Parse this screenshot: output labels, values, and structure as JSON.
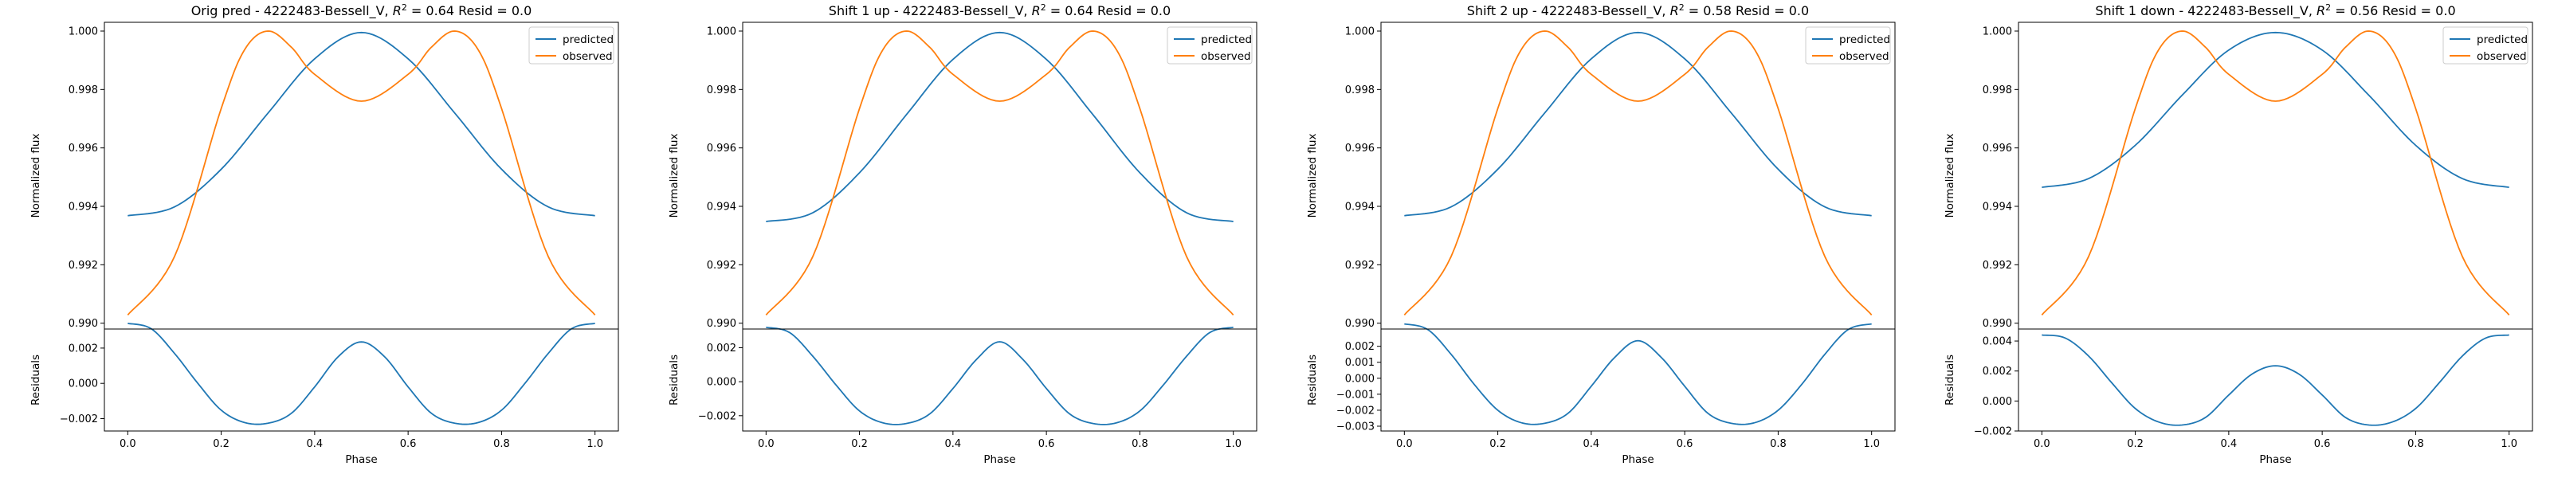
{
  "colors": {
    "predicted": "#1f77b4",
    "observed": "#ff7f0e",
    "axis": "#000000",
    "legend_border": "#cccccc"
  },
  "chart_data": [
    {
      "type": "line",
      "title": "Orig pred - 4222483-Bessell_V, R² = 0.64 Resid = 0.0",
      "title_parts": {
        "pre": "Orig pred - 4222483-Bessell_V, ",
        "r2": "0.64",
        "post": " Resid = 0.0"
      },
      "legend": {
        "position": "top-right",
        "entries": [
          "predicted",
          "observed"
        ]
      },
      "top": {
        "ylabel": "Normalized flux",
        "ylim": [
          0.9898,
          1.0003
        ],
        "yticks": [
          0.99,
          0.992,
          0.994,
          0.996,
          0.998,
          1.0
        ],
        "yticklabels": [
          "0.990",
          "0.992",
          "0.994",
          "0.996",
          "0.998",
          "1.000"
        ],
        "series": [
          {
            "name": "predicted",
            "x": [
              0.0,
              0.1,
              0.2,
              0.3,
              0.4,
              0.5,
              0.6,
              0.7,
              0.8,
              0.9,
              1.0
            ],
            "y": [
              0.99368,
              0.99398,
              0.99527,
              0.99719,
              0.99905,
              0.99995,
              0.99905,
              0.99719,
              0.99527,
              0.99398,
              0.99368
            ]
          },
          {
            "name": "observed",
            "x": [
              0.0,
              0.1,
              0.2,
              0.25,
              0.3,
              0.35,
              0.4,
              0.5,
              0.6,
              0.65,
              0.7,
              0.75,
              0.8,
              0.9,
              1.0
            ],
            "y": [
              0.99028,
              0.99228,
              0.99735,
              0.99936,
              1.0,
              0.99945,
              0.99852,
              0.9976,
              0.99852,
              0.99945,
              1.0,
              0.99936,
              0.99735,
              0.99228,
              0.99028
            ]
          }
        ]
      },
      "bottom": {
        "ylabel": "Residuals",
        "xlabel": "Phase",
        "ylim": [
          -0.0027,
          0.00308
        ],
        "yticks": [
          -0.002,
          0.0,
          0.002
        ],
        "yticklabels": [
          "−0.002",
          "0.000",
          "0.002"
        ],
        "xlim": [
          -0.05,
          1.05
        ],
        "xticks": [
          0.0,
          0.2,
          0.4,
          0.6,
          0.8,
          1.0
        ],
        "xticklabels": [
          "0.0",
          "0.2",
          "0.4",
          "0.6",
          "0.8",
          "1.0"
        ],
        "series": [
          {
            "name": "residual",
            "x": [
              0.0,
              0.05,
              0.1,
              0.15,
              0.2,
              0.25,
              0.3,
              0.35,
              0.4,
              0.45,
              0.5,
              0.55,
              0.6,
              0.65,
              0.7,
              0.75,
              0.8,
              0.85,
              0.9,
              0.95,
              1.0
            ],
            "y": [
              0.0034,
              0.0031,
              0.0017,
              0.0,
              -0.00152,
              -0.00222,
              -0.00226,
              -0.0017,
              -0.0002,
              0.0015,
              0.00235,
              0.0015,
              -0.0002,
              -0.0017,
              -0.00226,
              -0.00222,
              -0.00152,
              0.0,
              0.0017,
              0.0031,
              0.0034
            ]
          }
        ]
      }
    },
    {
      "type": "line",
      "title": "Shift 1 up - 4222483-Bessell_V, R² = 0.64 Resid = 0.0",
      "title_parts": {
        "pre": "Shift 1 up - 4222483-Bessell_V, ",
        "r2": "0.64",
        "post": " Resid = 0.0"
      },
      "legend": {
        "position": "top-right",
        "entries": [
          "predicted",
          "observed"
        ]
      },
      "top": {
        "ylabel": "Normalized flux",
        "ylim": [
          0.9898,
          1.0003
        ],
        "yticks": [
          0.99,
          0.992,
          0.994,
          0.996,
          0.998,
          1.0
        ],
        "yticklabels": [
          "0.990",
          "0.992",
          "0.994",
          "0.996",
          "0.998",
          "1.000"
        ],
        "series": [
          {
            "name": "predicted",
            "x": [
              0.0,
              0.1,
              0.2,
              0.3,
              0.4,
              0.5,
              0.6,
              0.7,
              0.8,
              0.9,
              1.0
            ],
            "y": [
              0.99348,
              0.99378,
              0.99515,
              0.99713,
              0.99903,
              0.99995,
              0.99903,
              0.99713,
              0.99515,
              0.99378,
              0.99348
            ]
          },
          {
            "name": "observed",
            "x": [
              0.0,
              0.1,
              0.2,
              0.25,
              0.3,
              0.35,
              0.4,
              0.5,
              0.6,
              0.65,
              0.7,
              0.75,
              0.8,
              0.9,
              1.0
            ],
            "y": [
              0.99028,
              0.99228,
              0.99735,
              0.99936,
              1.0,
              0.99945,
              0.99852,
              0.9976,
              0.99852,
              0.99945,
              1.0,
              0.99936,
              0.99735,
              0.99228,
              0.99028
            ]
          }
        ]
      },
      "bottom": {
        "ylabel": "Residuals",
        "xlabel": "Phase",
        "ylim": [
          -0.0029,
          0.0031
        ],
        "yticks": [
          -0.002,
          0.0,
          0.002
        ],
        "yticklabels": [
          "−0.002",
          "0.000",
          "0.002"
        ],
        "xlim": [
          -0.05,
          1.05
        ],
        "xticks": [
          0.0,
          0.2,
          0.4,
          0.6,
          0.8,
          1.0
        ],
        "xticklabels": [
          "0.0",
          "0.2",
          "0.4",
          "0.6",
          "0.8",
          "1.0"
        ],
        "series": [
          {
            "name": "residual",
            "x": [
              0.0,
              0.05,
              0.1,
              0.15,
              0.2,
              0.25,
              0.3,
              0.35,
              0.4,
              0.45,
              0.5,
              0.55,
              0.6,
              0.65,
              0.7,
              0.75,
              0.8,
              0.85,
              0.9,
              0.95,
              1.0
            ],
            "y": [
              0.0032,
              0.0029,
              0.0015,
              -0.0002,
              -0.00172,
              -0.00242,
              -0.00246,
              -0.0019,
              -0.0004,
              0.0013,
              0.00235,
              0.0013,
              -0.0004,
              -0.0019,
              -0.00246,
              -0.00242,
              -0.00172,
              -0.0002,
              0.0015,
              0.0029,
              0.0032
            ]
          }
        ]
      }
    },
    {
      "type": "line",
      "title": "Shift 2 up - 4222483-Bessell_V, R² = 0.58 Resid = 0.0",
      "title_parts": {
        "pre": "Shift 2 up - 4222483-Bessell_V, ",
        "r2": "0.58",
        "post": " Resid = 0.0"
      },
      "legend": {
        "position": "top-right",
        "entries": [
          "predicted",
          "observed"
        ]
      },
      "top": {
        "ylabel": "Normalized flux",
        "ylim": [
          0.9898,
          1.0003
        ],
        "yticks": [
          0.99,
          0.992,
          0.994,
          0.996,
          0.998,
          1.0
        ],
        "yticklabels": [
          "0.990",
          "0.992",
          "0.994",
          "0.996",
          "0.998",
          "1.000"
        ],
        "series": [
          {
            "name": "predicted",
            "x": [
              0.0,
              0.1,
              0.2,
              0.3,
              0.4,
              0.5,
              0.6,
              0.7,
              0.8,
              0.9,
              1.0
            ],
            "y": [
              0.99368,
              0.99398,
              0.99527,
              0.99719,
              0.99905,
              0.99995,
              0.99905,
              0.99719,
              0.99527,
              0.99398,
              0.99368
            ]
          },
          {
            "name": "observed",
            "x": [
              0.0,
              0.1,
              0.2,
              0.25,
              0.3,
              0.35,
              0.4,
              0.5,
              0.6,
              0.65,
              0.7,
              0.75,
              0.8,
              0.9,
              1.0
            ],
            "y": [
              0.99028,
              0.99228,
              0.99735,
              0.99936,
              1.0,
              0.99945,
              0.99852,
              0.9976,
              0.99852,
              0.99945,
              1.0,
              0.99936,
              0.99735,
              0.99228,
              0.99028
            ]
          }
        ]
      },
      "bottom": {
        "ylabel": "Residuals",
        "xlabel": "Phase",
        "ylim": [
          -0.0033,
          0.00308
        ],
        "yticks": [
          -0.003,
          -0.002,
          -0.001,
          0.0,
          0.001,
          0.002
        ],
        "yticklabels": [
          "−0.003",
          "−0.002",
          "−0.001",
          "0.000",
          "0.001",
          "0.002"
        ],
        "xlim": [
          -0.05,
          1.05
        ],
        "xticks": [
          0.0,
          0.2,
          0.4,
          0.6,
          0.8,
          1.0
        ],
        "xticklabels": [
          "0.0",
          "0.2",
          "0.4",
          "0.6",
          "0.8",
          "1.0"
        ],
        "series": [
          {
            "name": "residual",
            "x": [
              0.0,
              0.05,
              0.1,
              0.15,
              0.2,
              0.25,
              0.3,
              0.35,
              0.4,
              0.45,
              0.5,
              0.55,
              0.6,
              0.65,
              0.7,
              0.75,
              0.8,
              0.85,
              0.9,
              0.95,
              1.0
            ],
            "y": [
              0.0034,
              0.00305,
              0.0015,
              -0.0004,
              -0.002,
              -0.00278,
              -0.00282,
              -0.0022,
              -0.0005,
              0.0013,
              0.00235,
              0.0013,
              -0.0005,
              -0.0022,
              -0.00282,
              -0.00278,
              -0.002,
              -0.0004,
              0.0015,
              0.00305,
              0.0034
            ]
          }
        ]
      }
    },
    {
      "type": "line",
      "title": "Shift 1 down - 4222483-Bessell_V, R² = 0.56 Resid = 0.0",
      "title_parts": {
        "pre": "Shift 1 down - 4222483-Bessell_V, ",
        "r2": "0.56",
        "post": " Resid = 0.0"
      },
      "legend": {
        "position": "top-right",
        "entries": [
          "predicted",
          "observed"
        ]
      },
      "top": {
        "ylabel": "Normalized flux",
        "ylim": [
          0.9898,
          1.0003
        ],
        "yticks": [
          0.99,
          0.992,
          0.994,
          0.996,
          0.998,
          1.0
        ],
        "yticklabels": [
          "0.990",
          "0.992",
          "0.994",
          "0.996",
          "0.998",
          "1.000"
        ],
        "series": [
          {
            "name": "predicted",
            "x": [
              0.0,
              0.1,
              0.2,
              0.3,
              0.4,
              0.5,
              0.6,
              0.7,
              0.8,
              0.9,
              1.0
            ],
            "y": [
              0.99465,
              0.99495,
              0.99609,
              0.9978,
              0.99935,
              0.99995,
              0.99935,
              0.9978,
              0.99609,
              0.99495,
              0.99465
            ]
          },
          {
            "name": "observed",
            "x": [
              0.0,
              0.1,
              0.2,
              0.25,
              0.3,
              0.35,
              0.4,
              0.5,
              0.6,
              0.65,
              0.7,
              0.75,
              0.8,
              0.9,
              1.0
            ],
            "y": [
              0.99028,
              0.99228,
              0.99735,
              0.99936,
              1.0,
              0.99945,
              0.99852,
              0.9976,
              0.99852,
              0.99945,
              1.0,
              0.99936,
              0.99735,
              0.99228,
              0.99028
            ]
          }
        ]
      },
      "bottom": {
        "ylabel": "Residuals",
        "xlabel": "Phase",
        "ylim": [
          -0.002,
          0.0048
        ],
        "yticks": [
          -0.002,
          0.0,
          0.002,
          0.004
        ],
        "yticklabels": [
          "−0.002",
          "0.000",
          "0.002",
          "0.004"
        ],
        "xlim": [
          -0.05,
          1.05
        ],
        "xticks": [
          0.0,
          0.2,
          0.4,
          0.6,
          0.8,
          1.0
        ],
        "xticklabels": [
          "0.0",
          "0.2",
          "0.4",
          "0.6",
          "0.8",
          "1.0"
        ],
        "series": [
          {
            "name": "residual",
            "x": [
              0.0,
              0.05,
              0.1,
              0.15,
              0.2,
              0.25,
              0.3,
              0.35,
              0.4,
              0.45,
              0.5,
              0.55,
              0.6,
              0.65,
              0.7,
              0.75,
              0.8,
              0.85,
              0.9,
              0.95,
              1.0
            ],
            "y": [
              0.0044,
              0.0042,
              0.003,
              0.0012,
              -0.0005,
              -0.0014,
              -0.0016,
              -0.0011,
              0.0004,
              0.0018,
              0.00235,
              0.0018,
              0.0004,
              -0.0011,
              -0.0016,
              -0.0014,
              -0.0005,
              0.0012,
              0.003,
              0.0042,
              0.0044
            ]
          }
        ]
      }
    }
  ]
}
